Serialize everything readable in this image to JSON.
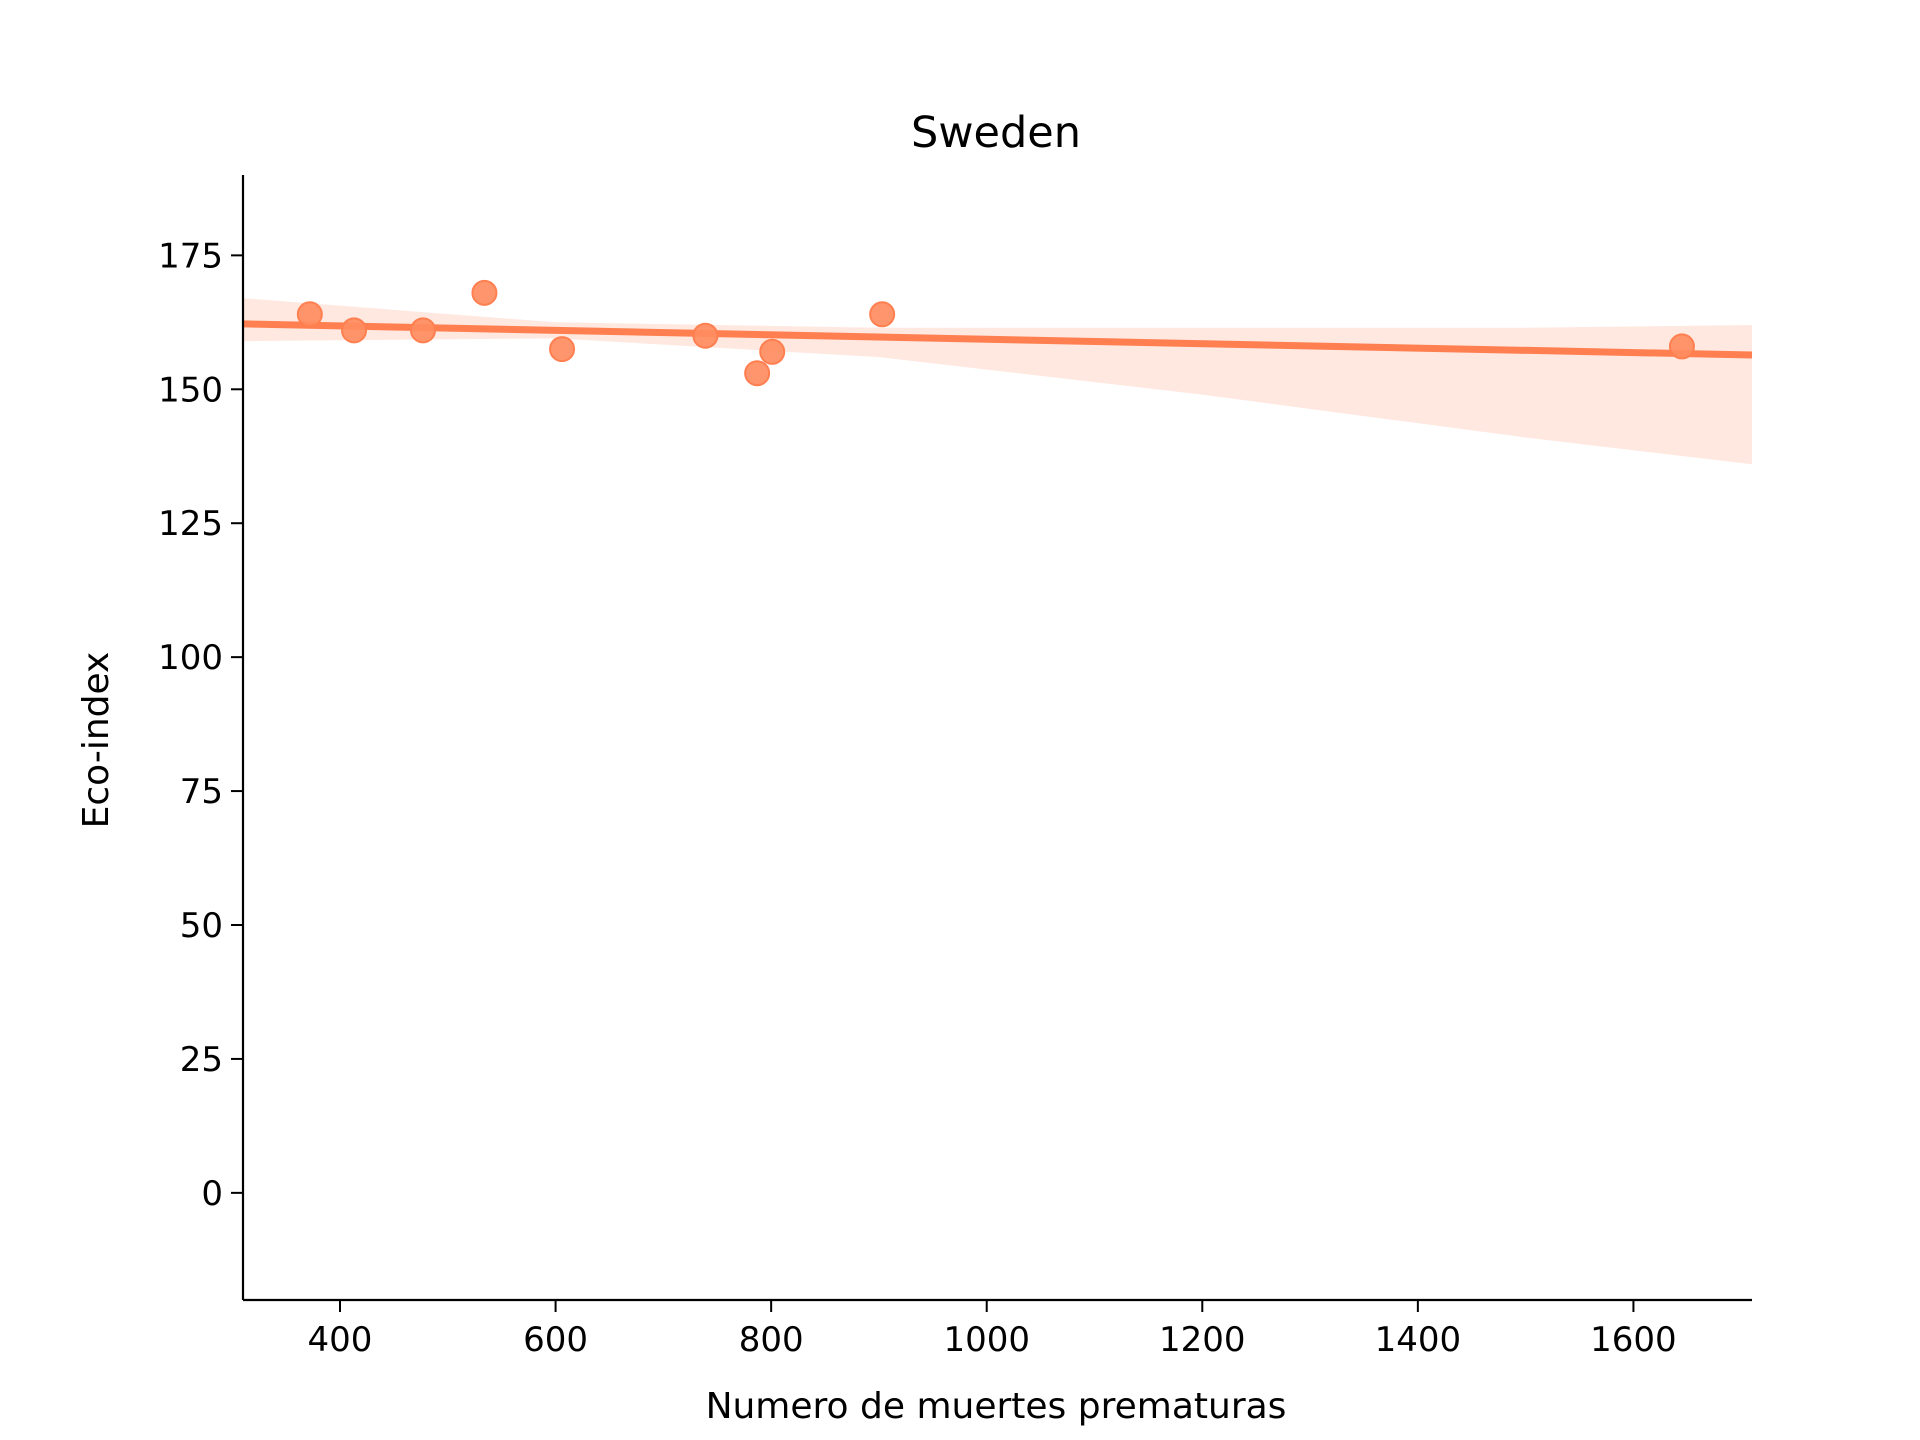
{
  "chart_data": {
    "type": "scatter",
    "title": "Sweden",
    "xlabel": "Numero de muertes prematuras",
    "ylabel": "Eco-index",
    "xlim": [
      310,
      1710
    ],
    "ylim": [
      -20,
      190
    ],
    "xticks": [
      400,
      600,
      800,
      1000,
      1200,
      1400,
      1600
    ],
    "yticks": [
      0,
      25,
      50,
      75,
      100,
      125,
      150,
      175
    ],
    "grid": false,
    "colors": {
      "points": "#ff8c5f",
      "regression_line": "#ff7f50",
      "confidence_band": "#ffe8e0",
      "axis": "#000000"
    },
    "series": [
      {
        "points": [
          {
            "x": 372,
            "y": 164
          },
          {
            "x": 413,
            "y": 161
          },
          {
            "x": 477,
            "y": 161
          },
          {
            "x": 534,
            "y": 168
          },
          {
            "x": 606,
            "y": 157.5
          },
          {
            "x": 739,
            "y": 160
          },
          {
            "x": 787,
            "y": 153
          },
          {
            "x": 801,
            "y": 157
          },
          {
            "x": 903,
            "y": 164
          },
          {
            "x": 1645,
            "y": 158
          }
        ]
      }
    ],
    "regression": {
      "line": [
        {
          "x": 310,
          "y": 162.2
        },
        {
          "x": 1710,
          "y": 156.4
        }
      ],
      "confidence_band": {
        "x": [
          310,
          600,
          900,
          1200,
          1500,
          1710
        ],
        "upper": [
          167,
          162.5,
          161.5,
          161.5,
          161.5,
          162
        ],
        "lower": [
          159,
          159.5,
          156,
          149,
          141,
          136
        ]
      }
    }
  }
}
